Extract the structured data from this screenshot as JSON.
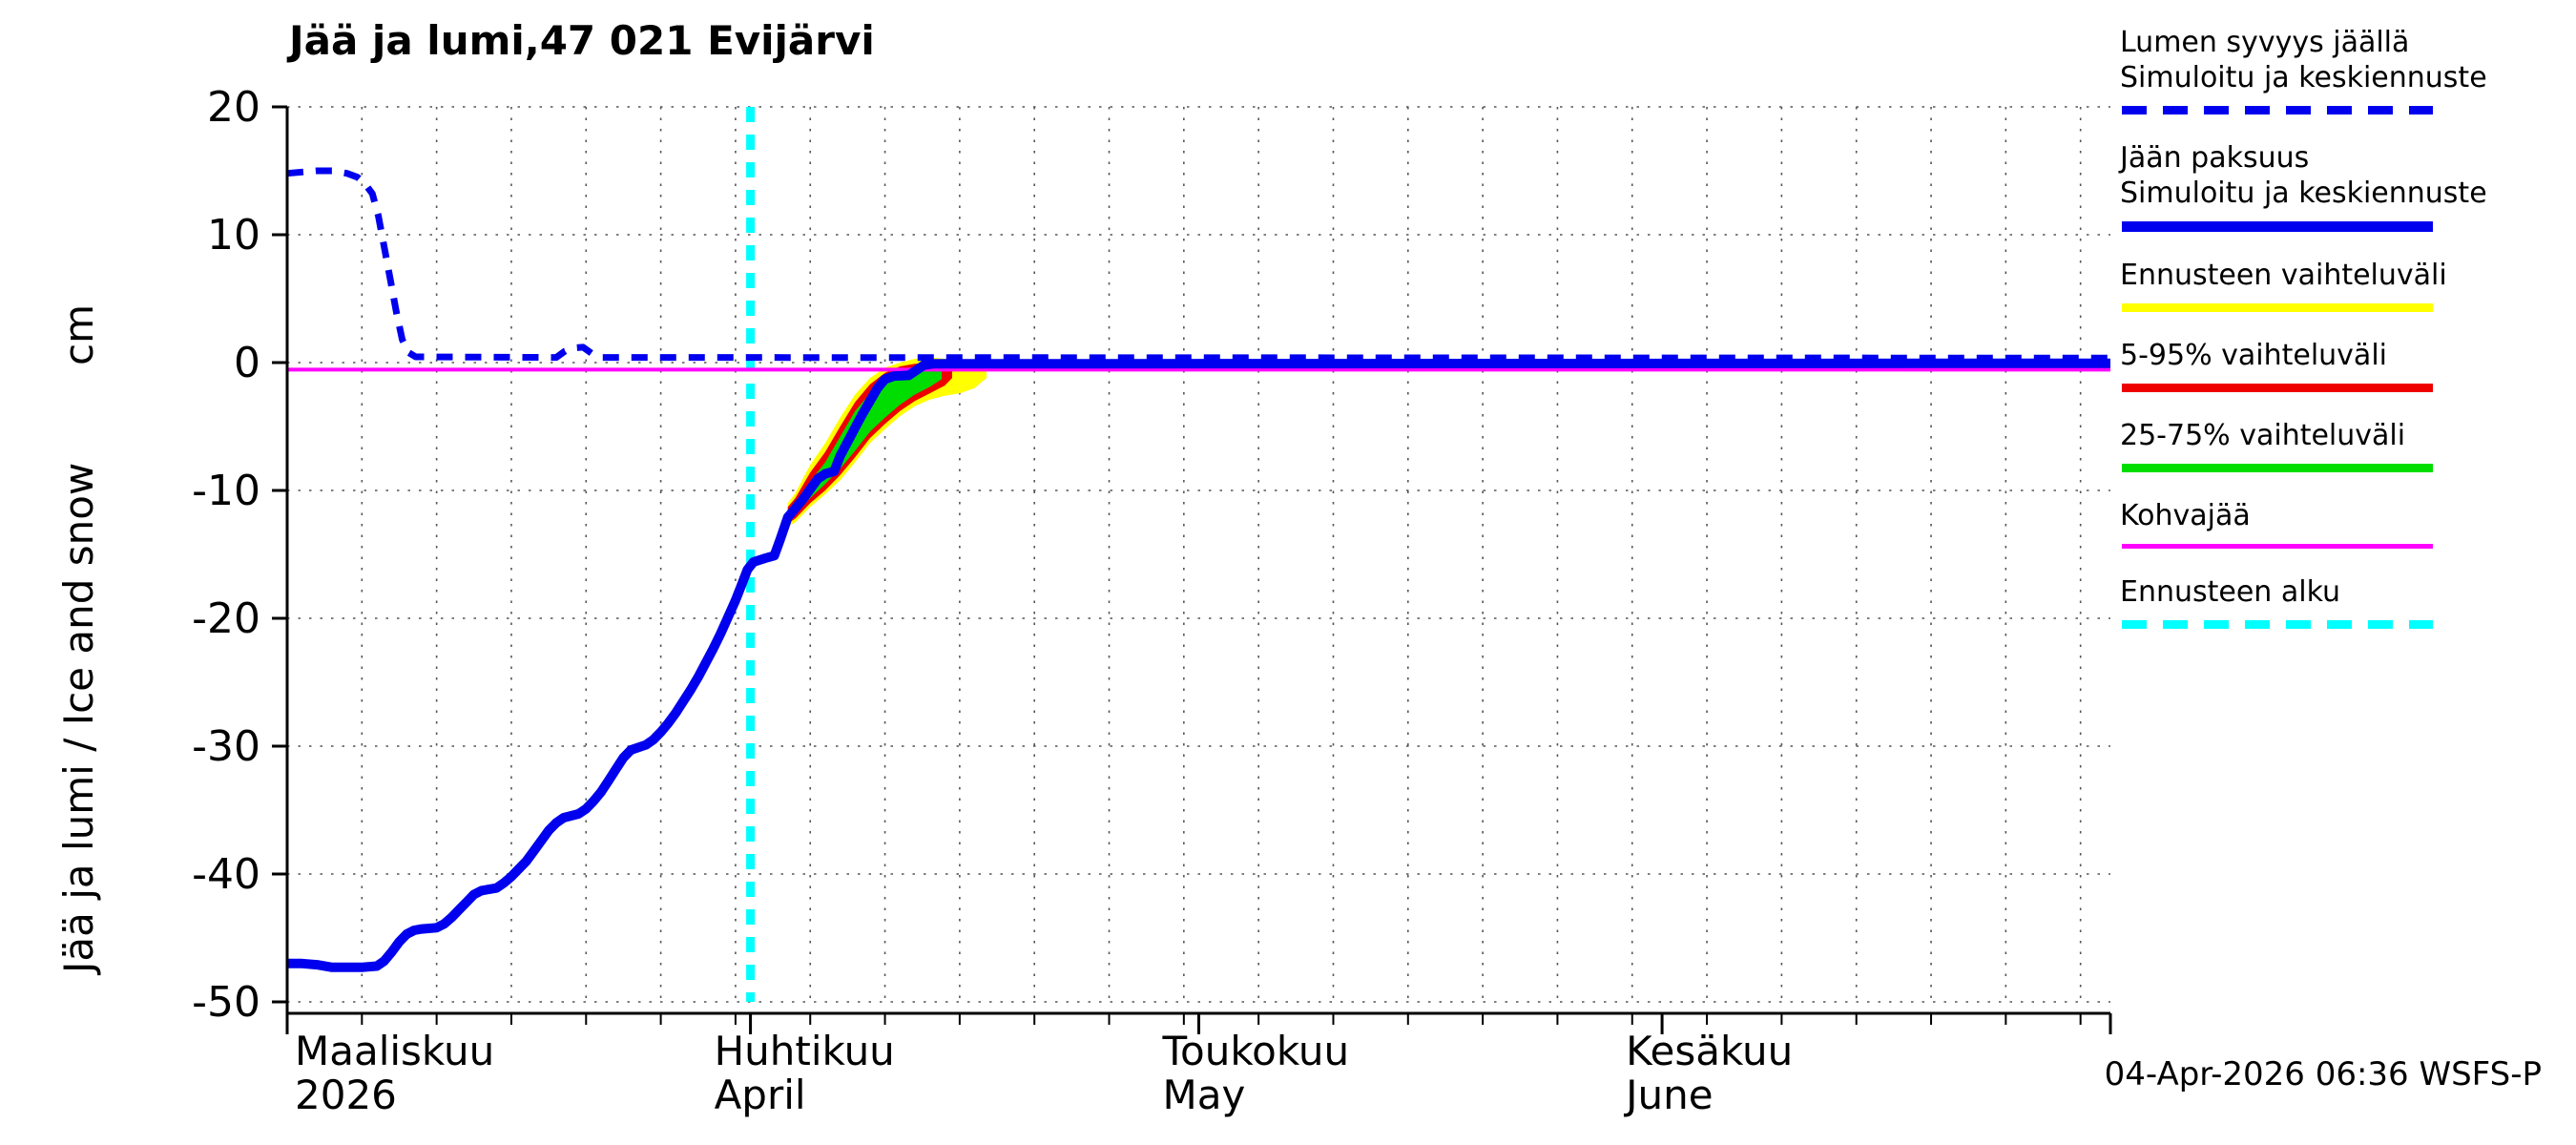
{
  "header": {
    "title": "Jää ja lumi,47 021 Evijärvi"
  },
  "footer": {
    "timestamp": "04-Apr-2026 06:36 WSFS-P"
  },
  "colors": {
    "blue": "#0000ee",
    "yellow": "#ffff00",
    "red": "#ee0000",
    "green": "#00dd00",
    "magenta": "#ff00ff",
    "cyan": "#00ffff"
  },
  "axes": {
    "ylabel": "Jää ja lumi / Ice and snow",
    "ylabel_unit": "cm",
    "ylim": [
      -50,
      20
    ],
    "yticks": [
      20,
      10,
      0,
      -10,
      -20,
      -30,
      -40,
      -50
    ],
    "x_grid_step_days": 5,
    "x_months": [
      {
        "line1": "Maaliskuu",
        "line2": "2026",
        "day": 0
      },
      {
        "line1": "Huhtikuu",
        "line2": "April",
        "day": 31
      },
      {
        "line1": "Toukokuu",
        "line2": "May",
        "day": 61
      },
      {
        "line1": "Kesäkuu",
        "line2": "June",
        "day": 92
      }
    ]
  },
  "legend": [
    {
      "label_lines": [
        "Lumen syvyys jäällä",
        "Simuloitu ja keskiennuste"
      ],
      "color": "#0000ee",
      "style": "dashed",
      "weight": 9
    },
    {
      "label_lines": [
        "Jään paksuus",
        "Simuloitu ja keskiennuste"
      ],
      "color": "#0000ee",
      "style": "solid",
      "weight": 11
    },
    {
      "label_lines": [
        "Ennusteen vaihteluväli"
      ],
      "color": "#ffff00",
      "style": "solid",
      "weight": 9
    },
    {
      "label_lines": [
        "5-95% vaihteluväli"
      ],
      "color": "#ee0000",
      "style": "solid",
      "weight": 9
    },
    {
      "label_lines": [
        "25-75% vaihteluväli"
      ],
      "color": "#00dd00",
      "style": "solid",
      "weight": 9
    },
    {
      "label_lines": [
        "Kohvajää"
      ],
      "color": "#ff00ff",
      "style": "solid",
      "weight": 5
    },
    {
      "label_lines": [
        "Ennusteen alku"
      ],
      "color": "#00ffff",
      "style": "dashed",
      "weight": 9
    }
  ],
  "chart_data": {
    "type": "line",
    "title": "Jää ja lumi,47 021 Evijärvi",
    "xlabel": "Maaliskuu 2026 – Kesäkuu (March–June 2026)",
    "ylabel": "Jää ja lumi / Ice and snow (cm)",
    "ylim": [
      -50,
      20
    ],
    "grid": true,
    "legend_position": "outside-right",
    "x_unit": "days from 2026-03-01",
    "x_range_days": [
      0,
      122
    ],
    "forecast_start_day": 31,
    "series": [
      {
        "key": "kohvajaa",
        "name": "Kohvajää",
        "color": "#ff00ff",
        "style": "solid",
        "width": 4,
        "points": [
          [
            0,
            -0.55
          ],
          [
            122,
            -0.55
          ]
        ]
      },
      {
        "key": "snow-depth",
        "name": "Lumen syvyys jäällä / Simuloitu ja keskiennuste",
        "color": "#0000ee",
        "style": "dashed",
        "width": 7,
        "points": [
          [
            0,
            14.8
          ],
          [
            1,
            14.9
          ],
          [
            2,
            15.0
          ],
          [
            3,
            15.0
          ],
          [
            4,
            14.8
          ],
          [
            4.7,
            14.5
          ],
          [
            5.2,
            14.0
          ],
          [
            5.7,
            13.2
          ],
          [
            6.1,
            11.5
          ],
          [
            6.5,
            9.0
          ],
          [
            6.9,
            6.5
          ],
          [
            7.3,
            4.0
          ],
          [
            7.7,
            1.8
          ],
          [
            8.1,
            0.8
          ],
          [
            8.6,
            0.45
          ],
          [
            18,
            0.4
          ],
          [
            18.6,
            0.9
          ],
          [
            19.2,
            1.15
          ],
          [
            19.8,
            1.2
          ],
          [
            20.4,
            0.7
          ],
          [
            21,
            0.4
          ],
          [
            122,
            0.35
          ]
        ]
      },
      {
        "key": "ice-thickness",
        "name": "Jään paksuus / Simuloitu ja keskiennuste",
        "color": "#0000ee",
        "style": "solid",
        "width": 10,
        "points": [
          [
            0,
            -47
          ],
          [
            1,
            -47
          ],
          [
            2,
            -47.1
          ],
          [
            3,
            -47.3
          ],
          [
            4,
            -47.3
          ],
          [
            5,
            -47.3
          ],
          [
            6,
            -47.2
          ],
          [
            6.5,
            -46.8
          ],
          [
            7,
            -46.1
          ],
          [
            7.5,
            -45.3
          ],
          [
            8,
            -44.7
          ],
          [
            8.5,
            -44.4
          ],
          [
            9,
            -44.3
          ],
          [
            10,
            -44.2
          ],
          [
            10.5,
            -43.9
          ],
          [
            11,
            -43.4
          ],
          [
            11.5,
            -42.8
          ],
          [
            12,
            -42.2
          ],
          [
            12.5,
            -41.6
          ],
          [
            13,
            -41.3
          ],
          [
            14,
            -41.1
          ],
          [
            14.5,
            -40.7
          ],
          [
            15,
            -40.2
          ],
          [
            15.5,
            -39.6
          ],
          [
            16,
            -39.0
          ],
          [
            16.5,
            -38.2
          ],
          [
            17,
            -37.4
          ],
          [
            17.5,
            -36.6
          ],
          [
            18,
            -36.0
          ],
          [
            18.5,
            -35.6
          ],
          [
            19.5,
            -35.3
          ],
          [
            20,
            -34.9
          ],
          [
            20.5,
            -34.3
          ],
          [
            21,
            -33.6
          ],
          [
            21.5,
            -32.7
          ],
          [
            22,
            -31.8
          ],
          [
            22.5,
            -30.9
          ],
          [
            23,
            -30.3
          ],
          [
            24,
            -29.9
          ],
          [
            24.5,
            -29.5
          ],
          [
            25,
            -28.9
          ],
          [
            25.5,
            -28.2
          ],
          [
            26,
            -27.4
          ],
          [
            26.5,
            -26.5
          ],
          [
            27,
            -25.6
          ],
          [
            27.5,
            -24.6
          ],
          [
            28,
            -23.5
          ],
          [
            28.5,
            -22.4
          ],
          [
            29,
            -21.2
          ],
          [
            29.5,
            -19.9
          ],
          [
            30,
            -18.6
          ],
          [
            30.4,
            -17.4
          ],
          [
            30.8,
            -16.2
          ],
          [
            31.2,
            -15.6
          ],
          [
            32,
            -15.3
          ],
          [
            32.6,
            -15.1
          ],
          [
            33,
            -13.8
          ],
          [
            33.5,
            -12.1
          ],
          [
            34,
            -11.4
          ],
          [
            34.5,
            -10.7
          ],
          [
            35,
            -9.9
          ],
          [
            35.5,
            -9.1
          ],
          [
            36,
            -8.7
          ],
          [
            36.6,
            -8.5
          ],
          [
            37,
            -7.3
          ],
          [
            37.5,
            -6.2
          ],
          [
            38,
            -5.1
          ],
          [
            38.5,
            -4.0
          ],
          [
            39,
            -3.0
          ],
          [
            39.5,
            -2.0
          ],
          [
            40,
            -1.3
          ],
          [
            40.6,
            -1.05
          ],
          [
            41.6,
            -1.0
          ],
          [
            42.1,
            -0.6
          ],
          [
            42.6,
            -0.2
          ],
          [
            43.2,
            -0.1
          ],
          [
            122,
            -0.05
          ]
        ]
      }
    ],
    "bands": [
      {
        "key": "forecast-range",
        "name": "Ennusteen vaihteluväli",
        "color": "#ffff00",
        "points": [
          [
            33.5,
            -12.8,
            -11.0
          ],
          [
            34,
            -12.5,
            -10.2
          ],
          [
            35,
            -11.3,
            -8.0
          ],
          [
            36,
            -10.3,
            -6.3
          ],
          [
            37,
            -9.2,
            -4.3
          ],
          [
            38,
            -7.8,
            -2.5
          ],
          [
            39,
            -6.3,
            -1.2
          ],
          [
            40,
            -5.2,
            -0.4
          ],
          [
            41,
            -4.2,
            0.0
          ],
          [
            42,
            -3.4,
            0.3
          ],
          [
            43,
            -2.9,
            0.4
          ],
          [
            44,
            -2.6,
            0.3
          ],
          [
            45,
            -2.4,
            0.2
          ],
          [
            46,
            -2.0,
            0.1
          ],
          [
            46.8,
            -1.2,
            0.0
          ]
        ]
      },
      {
        "key": "p5-95",
        "name": "5-95% vaihteluväli",
        "color": "#ee0000",
        "points": [
          [
            33.5,
            -12.6,
            -11.3
          ],
          [
            34,
            -12.2,
            -10.6
          ],
          [
            35,
            -11.0,
            -8.6
          ],
          [
            36,
            -10.0,
            -7.0
          ],
          [
            37,
            -8.8,
            -5.0
          ],
          [
            38,
            -7.4,
            -3.1
          ],
          [
            39,
            -5.9,
            -1.7
          ],
          [
            40,
            -4.8,
            -0.8
          ],
          [
            41,
            -3.8,
            -0.3
          ],
          [
            42,
            -3.0,
            -0.1
          ],
          [
            43,
            -2.4,
            -0.1
          ],
          [
            44,
            -1.8,
            -0.1
          ],
          [
            44.5,
            -1.2,
            -0.2
          ]
        ]
      },
      {
        "key": "p25-75",
        "name": "25-75% vaihteluväli",
        "color": "#00dd00",
        "points": [
          [
            33.5,
            -12.3,
            -11.7
          ],
          [
            34,
            -11.9,
            -11.0
          ],
          [
            35,
            -10.6,
            -9.3
          ],
          [
            36,
            -9.5,
            -7.8
          ],
          [
            37,
            -8.3,
            -5.8
          ],
          [
            38,
            -6.9,
            -3.8
          ],
          [
            39,
            -5.4,
            -2.4
          ],
          [
            40,
            -4.3,
            -1.3
          ],
          [
            41,
            -3.3,
            -0.7
          ],
          [
            42,
            -2.5,
            -0.4
          ],
          [
            43,
            -1.9,
            -0.4
          ],
          [
            43.8,
            -1.3,
            -0.5
          ]
        ]
      }
    ]
  }
}
